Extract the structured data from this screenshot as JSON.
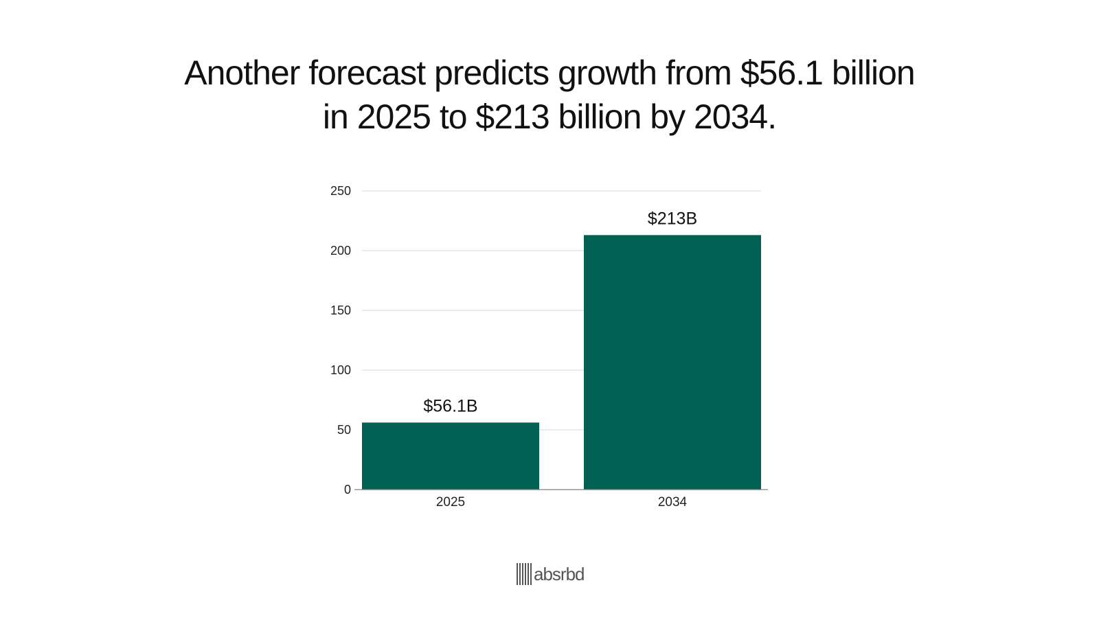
{
  "headline": {
    "line1": "Another forecast predicts growth from $56.1 billion",
    "line2": "in 2025 to $213 billion by 2034."
  },
  "chart_data": {
    "type": "bar",
    "categories": [
      "2025",
      "2034"
    ],
    "values": [
      56.1,
      213
    ],
    "data_labels": [
      "$56.1B",
      "$213B"
    ],
    "title": "",
    "xlabel": "",
    "ylabel": "",
    "ylim": [
      0,
      250
    ],
    "yticks": [
      0,
      50,
      100,
      150,
      200,
      250
    ],
    "grid": true,
    "legend": "none",
    "bar_color": "#006052",
    "grid_color": "#d9d9d9",
    "axis_color": "#7f7f7f"
  },
  "brand": {
    "icon": "barcode-logo-icon",
    "name": "absrbd"
  }
}
